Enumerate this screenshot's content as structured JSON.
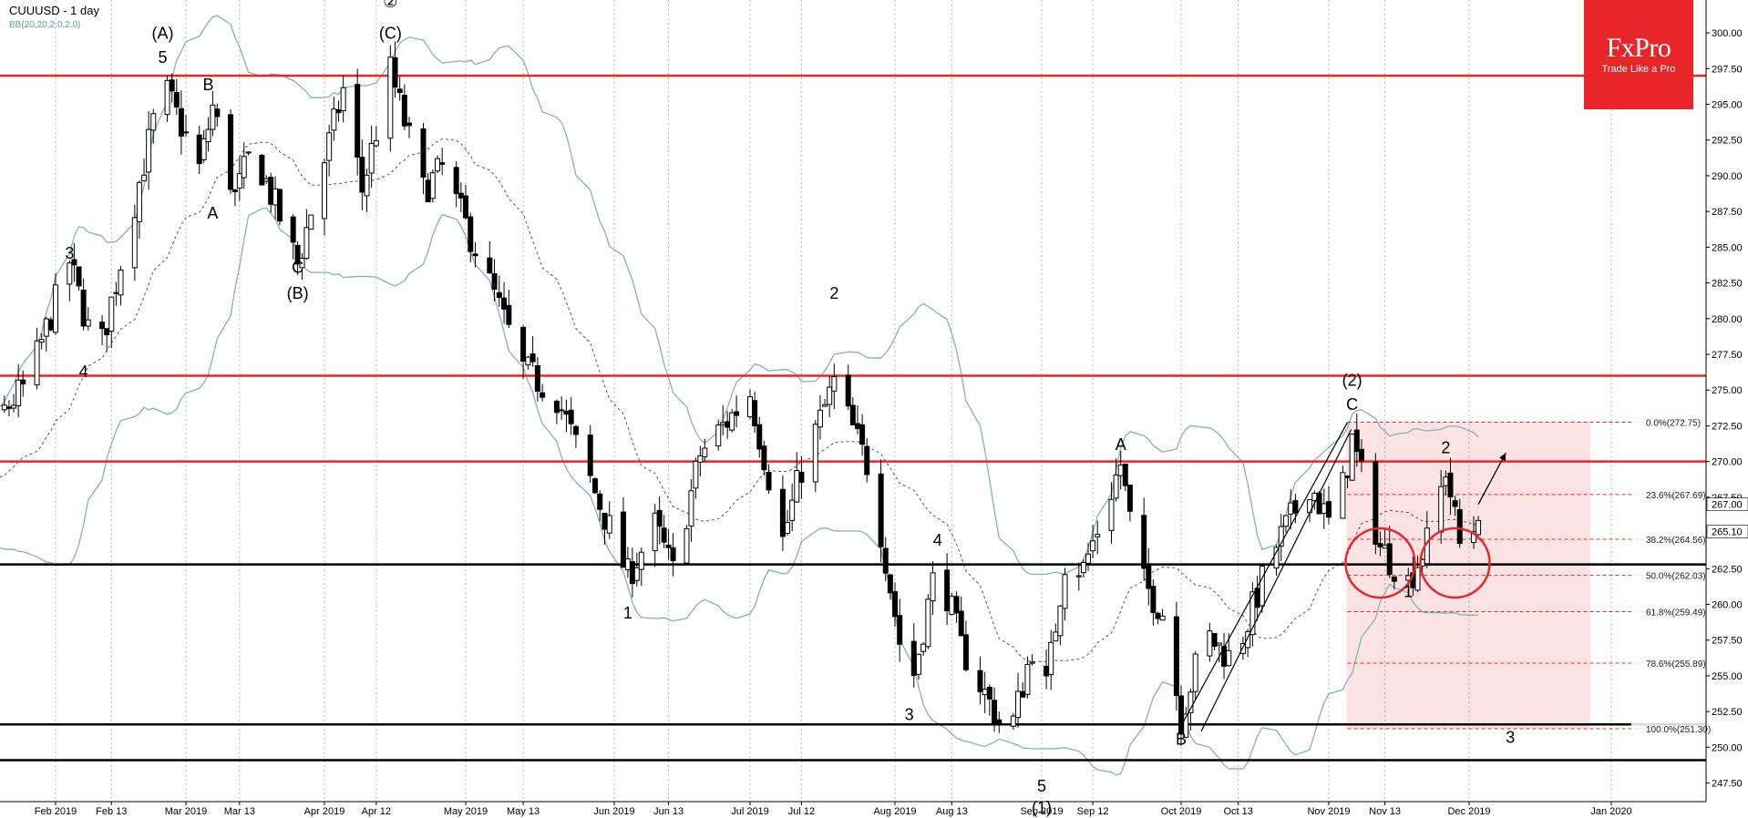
{
  "header": {
    "title": "CUUUSD - 1 day",
    "indicator": "BB(20,20,2.0,2.0)"
  },
  "brand": {
    "name": "FxPro",
    "tagline": "Trade Like a Pro",
    "color": "#e8262a"
  },
  "chart_data": {
    "type": "candlestick",
    "symbol": "CUUUSD",
    "timeframe": "1 day",
    "ylim": [
      246.2,
      302.3
    ],
    "y_ticks": [
      247.5,
      250.0,
      252.5,
      255.0,
      257.5,
      260.0,
      262.5,
      265.0,
      267.5,
      270.0,
      272.5,
      275.0,
      277.5,
      280.0,
      282.5,
      285.0,
      287.5,
      290.0,
      292.5,
      295.0,
      297.5,
      300.0
    ],
    "x_ticks": [
      "Feb 2019",
      "Feb 13",
      "Mar 2019",
      "Mar 13",
      "Apr 2019",
      "Apr 12",
      "May 2019",
      "May 13",
      "Jun 2019",
      "Jun 13",
      "Jul 2019",
      "Jul 12",
      "Aug 2019",
      "Aug 13",
      "Sep 2019",
      "Sep 12",
      "Oct 2019",
      "Oct 13",
      "Nov 2019",
      "Nov 13",
      "Dec 2019",
      "Jan 2020"
    ],
    "price_labels": [
      {
        "value": 267.0,
        "text": "267.00"
      },
      {
        "value": 265.1,
        "text": "265.10"
      }
    ],
    "horizontal_levels": [
      {
        "value": 297.0,
        "color": "#e8262a"
      },
      {
        "value": 276.0,
        "color": "#e8262a"
      },
      {
        "value": 270.0,
        "color": "#e8262a"
      },
      {
        "value": 262.8,
        "color": "#000000"
      },
      {
        "value": 251.6,
        "color": "#000000"
      },
      {
        "value": 249.1,
        "color": "#000000"
      }
    ],
    "fibonacci": [
      {
        "value": 272.75,
        "label": "0.0%(272.75)"
      },
      {
        "value": 267.69,
        "label": "23.6%(267.69)"
      },
      {
        "value": 264.56,
        "label": "38.2%(264.56)"
      },
      {
        "value": 262.03,
        "label": "50.0%(262.03)"
      },
      {
        "value": 259.49,
        "label": "61.8%(259.49)"
      },
      {
        "value": 255.89,
        "label": "78.6%(255.89)"
      },
      {
        "value": 251.3,
        "label": "100.0%(251.30)"
      }
    ],
    "wave_labels": [
      {
        "text": "(A)",
        "date": "Feb 24",
        "price": 299.6
      },
      {
        "text": "5",
        "date": "Feb 24",
        "price": 297.9
      },
      {
        "text": "B",
        "date": "Mar 6",
        "price": 296.0
      },
      {
        "text": "A",
        "date": "Mar 7",
        "price": 287.0
      },
      {
        "text": "3",
        "date": "Feb 4",
        "price": 284.2
      },
      {
        "text": "4",
        "date": "Feb 7",
        "price": 275.9
      },
      {
        "text": "C",
        "date": "Mar 26",
        "price": 283.2
      },
      {
        "text": "(B)",
        "date": "Mar 26",
        "price": 281.4
      },
      {
        "text": "②",
        "date": "Apr 15",
        "price": 301.8
      },
      {
        "text": "(C)",
        "date": "Apr 15",
        "price": 299.6
      },
      {
        "text": "2",
        "date": "Jul 19",
        "price": 281.4
      },
      {
        "text": "1",
        "date": "Jun 4",
        "price": 259.0
      },
      {
        "text": "4",
        "date": "Aug 10",
        "price": 264.1
      },
      {
        "text": "3",
        "date": "Aug 4",
        "price": 251.9
      },
      {
        "text": "5",
        "date": "Sep 1",
        "price": 246.9
      },
      {
        "text": "(1)",
        "date": "Sep 1",
        "price": 245.4
      },
      {
        "text": "A",
        "date": "Sep 18",
        "price": 270.8
      },
      {
        "text": "B",
        "date": "Oct 1",
        "price": 250.2
      },
      {
        "text": "(2)",
        "date": "Nov 6",
        "price": 275.3
      },
      {
        "text": "C",
        "date": "Nov 6",
        "price": 273.6
      },
      {
        "text": "1",
        "date": "Nov 18",
        "price": 260.5
      },
      {
        "text": "2",
        "date": "Nov 26",
        "price": 270.6
      },
      {
        "text": "3",
        "date": "Dec 10",
        "price": 250.3
      }
    ],
    "circles": [
      {
        "date": "Nov 12",
        "price": 262.9
      },
      {
        "date": "Nov 28",
        "price": 262.9
      }
    ],
    "fib_zone": {
      "from": "Nov 5",
      "to": "Jan 1",
      "high": 272.75,
      "low": 251.3
    },
    "trendline": {
      "from_date": "Oct 1",
      "from_price": 251.5,
      "to_date": "Nov 5",
      "to_price": 272.75
    },
    "projection_arrow": {
      "from_date": "Dec 3",
      "from_price": 267.0,
      "to_date": "Dec 9",
      "to_price": 270.6
    }
  }
}
